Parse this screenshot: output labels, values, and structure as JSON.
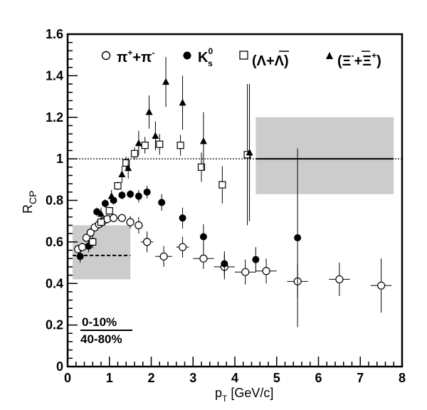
{
  "chart_data": {
    "type": "scatter",
    "xlabel": "p_T [GeV/c]",
    "ylabel": "R_CP",
    "xlim": [
      0,
      8
    ],
    "ylim": [
      0,
      1.6
    ],
    "x_ticks": [
      0,
      1,
      2,
      3,
      4,
      5,
      6,
      7,
      8
    ],
    "y_ticks": [
      0,
      0.2,
      0.4,
      0.6,
      0.8,
      1,
      1.2,
      1.4,
      1.6
    ],
    "x_tick_labels": [
      "0",
      "1",
      "2",
      "3",
      "4",
      "5",
      "6",
      "7",
      "8"
    ],
    "y_tick_labels": [
      "0",
      "0.2",
      "0.4",
      "0.6",
      "0.8",
      "1",
      "1.2",
      "1.4",
      "1.6"
    ],
    "centrality_label": {
      "numerator": "0-10%",
      "denominator": "40-80%"
    },
    "legend_placement": "top",
    "reference_line": {
      "y": 1,
      "style": "dotted"
    },
    "systematic_bands": [
      {
        "x": [
          4.5,
          7.8
        ],
        "y": [
          0.83,
          1.2
        ],
        "center": 1.0,
        "color": "#cccccc"
      },
      {
        "x": [
          0.12,
          1.5
        ],
        "y": [
          0.42,
          0.68
        ],
        "center": 0.535,
        "color": "#cccccc"
      }
    ],
    "series": [
      {
        "name": "π⁺+π⁻",
        "marker": "open-circle",
        "points": [
          {
            "x": 0.25,
            "y": 0.565,
            "xerr": 0.05,
            "yerr": 0.02
          },
          {
            "x": 0.35,
            "y": 0.575,
            "xerr": 0.05,
            "yerr": 0.02
          },
          {
            "x": 0.45,
            "y": 0.62,
            "xerr": 0.05,
            "yerr": 0.02
          },
          {
            "x": 0.55,
            "y": 0.645,
            "xerr": 0.05,
            "yerr": 0.02
          },
          {
            "x": 0.65,
            "y": 0.67,
            "xerr": 0.05,
            "yerr": 0.02
          },
          {
            "x": 0.75,
            "y": 0.685,
            "xerr": 0.05,
            "yerr": 0.02
          },
          {
            "x": 0.85,
            "y": 0.7,
            "xerr": 0.05,
            "yerr": 0.02
          },
          {
            "x": 0.95,
            "y": 0.71,
            "xerr": 0.05,
            "yerr": 0.02
          },
          {
            "x": 1.1,
            "y": 0.715,
            "xerr": 0.1,
            "yerr": 0.02
          },
          {
            "x": 1.3,
            "y": 0.715,
            "xerr": 0.1,
            "yerr": 0.02
          },
          {
            "x": 1.5,
            "y": 0.695,
            "xerr": 0.1,
            "yerr": 0.03
          },
          {
            "x": 1.7,
            "y": 0.68,
            "xerr": 0.1,
            "yerr": 0.04
          },
          {
            "x": 1.9,
            "y": 0.6,
            "xerr": 0.15,
            "yerr": 0.05
          },
          {
            "x": 2.3,
            "y": 0.53,
            "xerr": 0.2,
            "yerr": 0.05
          },
          {
            "x": 2.75,
            "y": 0.575,
            "xerr": 0.15,
            "yerr": 0.05
          },
          {
            "x": 3.25,
            "y": 0.52,
            "xerr": 0.25,
            "yerr": 0.05
          },
          {
            "x": 3.75,
            "y": 0.48,
            "xerr": 0.25,
            "yerr": 0.06
          },
          {
            "x": 4.25,
            "y": 0.455,
            "xerr": 0.25,
            "yerr": 0.06
          },
          {
            "x": 4.75,
            "y": 0.46,
            "xerr": 0.25,
            "yerr": 0.06
          },
          {
            "x": 5.5,
            "y": 0.41,
            "xerr": 0.25,
            "yerr": 0.08
          },
          {
            "x": 6.5,
            "y": 0.42,
            "xerr": 0.25,
            "yerr": 0.08
          },
          {
            "x": 7.5,
            "y": 0.39,
            "xerr": 0.25,
            "yerr": 0.13
          }
        ]
      },
      {
        "name": "K_s^0",
        "marker": "filled-circle",
        "points": [
          {
            "x": 0.3,
            "y": 0.53,
            "yerr": 0.03
          },
          {
            "x": 0.5,
            "y": 0.58,
            "yerr": 0.03
          },
          {
            "x": 0.7,
            "y": 0.745,
            "yerr": 0.02
          },
          {
            "x": 0.9,
            "y": 0.785,
            "yerr": 0.02
          },
          {
            "x": 1.1,
            "y": 0.8,
            "yerr": 0.02
          },
          {
            "x": 1.3,
            "y": 0.825,
            "yerr": 0.02
          },
          {
            "x": 1.5,
            "y": 0.83,
            "yerr": 0.02
          },
          {
            "x": 1.7,
            "y": 0.82,
            "yerr": 0.03
          },
          {
            "x": 1.9,
            "y": 0.84,
            "yerr": 0.03
          },
          {
            "x": 2.25,
            "y": 0.79,
            "yerr": 0.04
          },
          {
            "x": 2.75,
            "y": 0.715,
            "yerr": 0.05
          },
          {
            "x": 3.25,
            "y": 0.625,
            "yerr": 0.06
          },
          {
            "x": 3.75,
            "y": 0.495,
            "yerr": 0.06
          },
          {
            "x": 4.5,
            "y": 0.515,
            "yerr": 0.06
          },
          {
            "x": 5.5,
            "y": 0.62,
            "yerr": 0.43
          }
        ]
      },
      {
        "name": "(Λ+Λ̄)",
        "marker": "open-square",
        "points": [
          {
            "x": 0.6,
            "y": 0.6,
            "yerr": 0.03
          },
          {
            "x": 0.8,
            "y": 0.695,
            "yerr": 0.02
          },
          {
            "x": 1.0,
            "y": 0.75,
            "yerr": 0.02
          },
          {
            "x": 1.2,
            "y": 0.87,
            "yerr": 0.02
          },
          {
            "x": 1.4,
            "y": 0.98,
            "yerr": 0.03
          },
          {
            "x": 1.6,
            "y": 1.025,
            "yerr": 0.03
          },
          {
            "x": 1.85,
            "y": 1.065,
            "yerr": 0.04
          },
          {
            "x": 2.2,
            "y": 1.07,
            "yerr": 0.05
          },
          {
            "x": 2.7,
            "y": 1.065,
            "yerr": 0.05
          },
          {
            "x": 3.2,
            "y": 0.96,
            "yerr": 0.07
          },
          {
            "x": 3.7,
            "y": 0.875,
            "yerr": 0.09
          },
          {
            "x": 4.3,
            "y": 1.02,
            "yerr": 0.34
          }
        ]
      },
      {
        "name": "(Ξ⁻+Ξ̄⁺)",
        "marker": "filled-triangle",
        "points": [
          {
            "x": 0.8,
            "y": 0.735,
            "yerr": 0.03
          },
          {
            "x": 1.05,
            "y": 0.82,
            "yerr": 0.03
          },
          {
            "x": 1.3,
            "y": 0.925,
            "yerr": 0.04
          },
          {
            "x": 1.45,
            "y": 0.955,
            "yerr": 0.05
          },
          {
            "x": 1.7,
            "y": 1.075,
            "yerr": 0.06
          },
          {
            "x": 1.95,
            "y": 1.225,
            "yerr": 0.08
          },
          {
            "x": 2.1,
            "y": 1.11,
            "yerr": 0.07
          },
          {
            "x": 2.35,
            "y": 1.37,
            "yerr": 0.12
          },
          {
            "x": 2.75,
            "y": 1.27,
            "yerr": 0.13
          },
          {
            "x": 3.25,
            "y": 1.085,
            "yerr": 0.14
          },
          {
            "x": 4.35,
            "y": 1.03,
            "yerr": 0.33
          }
        ]
      }
    ]
  }
}
